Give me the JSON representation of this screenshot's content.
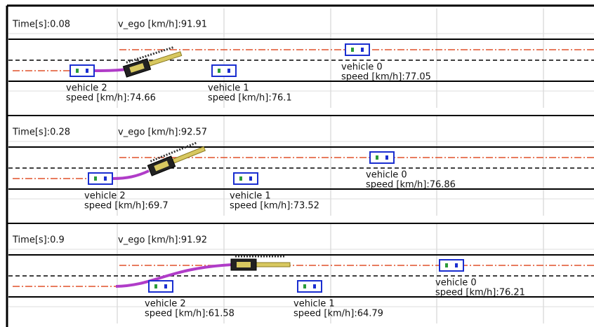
{
  "panels": [
    {
      "time": "Time[s]:0.08",
      "v_ego": "v_ego [km/h]:91.91",
      "vehicles": [
        {
          "name": "vehicle 0",
          "speed": "speed [km/h]:77.05"
        },
        {
          "name": "vehicle 1",
          "speed": "speed [km/h]:76.1"
        },
        {
          "name": "vehicle 2",
          "speed": "speed [km/h]:74.66"
        }
      ]
    },
    {
      "time": "Time[s]:0.28",
      "v_ego": "v_ego [km/h]:92.57",
      "vehicles": [
        {
          "name": "vehicle 0",
          "speed": "speed [km/h]:76.86"
        },
        {
          "name": "vehicle 1",
          "speed": "speed [km/h]:73.52"
        },
        {
          "name": "vehicle 2",
          "speed": "speed [km/h]:69.7"
        }
      ]
    },
    {
      "time": "Time[s]:0.9",
      "v_ego": "v_ego [km/h]:91.92",
      "vehicles": [
        {
          "name": "vehicle 0",
          "speed": "speed [km/h]:76.21"
        },
        {
          "name": "vehicle 1",
          "speed": "speed [km/h]:64.79"
        },
        {
          "name": "vehicle 2",
          "speed": "speed [km/h]:61.58"
        }
      ]
    }
  ]
}
